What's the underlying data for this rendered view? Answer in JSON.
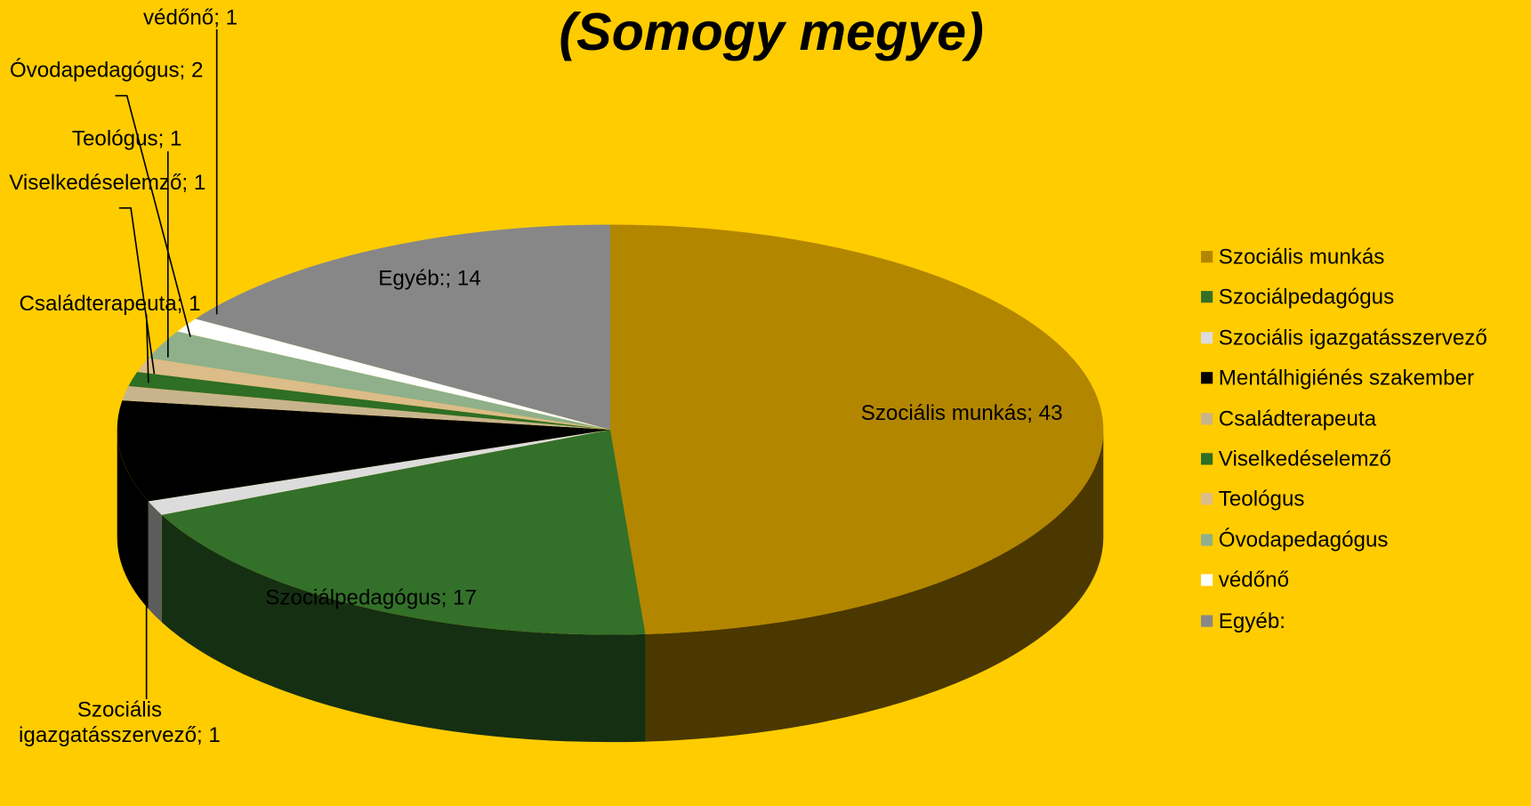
{
  "chart_data": {
    "type": "pie3d",
    "title": "(Somogy megye)",
    "categories": [
      "Szociális munkás",
      "Szociálpedagógus",
      "Szociális igazgatásszervező",
      "Mentálhigiénés szakember",
      "Családterapeuta",
      "Viselkedéselemző",
      "Teológus",
      "Óvodapedagógus",
      "védőnő",
      "Egyéb:"
    ],
    "values": [
      43,
      17,
      1,
      7,
      1,
      1,
      1,
      2,
      1,
      14
    ],
    "value_labels": [
      "Szociális munkás; 43",
      "Szociálpedagógus; 17",
      "Szociális igazgatásszervező; 1",
      null,
      "Családterapeuta; 1",
      "Viselkedéselemző; 1",
      "Teológus; 1",
      "Óvodapedagógus; 2",
      "védőnő; 1",
      "Egyéb:; 14"
    ],
    "colors": [
      "#b38600",
      "#33702a",
      "#dcdcdc",
      "#000000",
      "#c8b48c",
      "#2e6e25",
      "#dcbc88",
      "#8fb08a",
      "#ffffff",
      "#878787"
    ],
    "legend": "right"
  }
}
